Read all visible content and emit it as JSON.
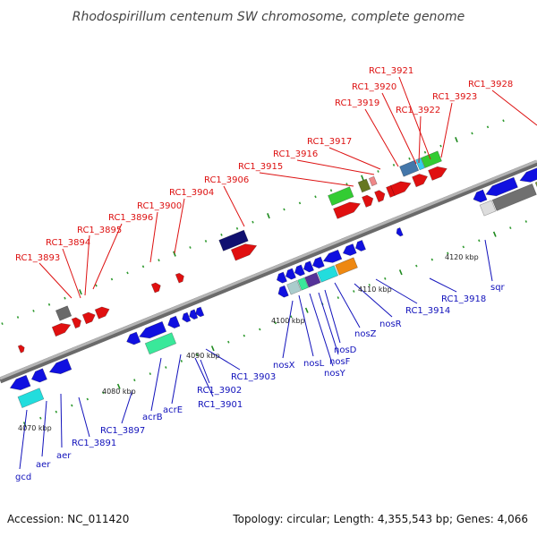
{
  "title": "Rhodospirillum centenum SW chromosome, complete genome",
  "footer": {
    "accession": "Accession: NC_011420",
    "topology": "Topology: circular; Length: 4,355,543 bp; Genes: 4,066"
  },
  "scale_labels": [
    "4070 kbp",
    "4080 kbp",
    "4090 kbp",
    "4100 kbp",
    "4110 kbp",
    "4120 kbp"
  ],
  "colors": {
    "forward_label": "#dd1111",
    "reverse_label": "#1111bb",
    "backbone": "#999999"
  },
  "forward_genes": [
    "RC1_3893",
    "RC1_3894",
    "RC1_3895",
    "RC1_3896",
    "RC1_3900",
    "RC1_3904",
    "RC1_3906",
    "RC1_3915",
    "RC1_3916",
    "RC1_3917",
    "RC1_3919",
    "RC1_3920",
    "RC1_3921",
    "RC1_3922",
    "RC1_3923",
    "RC1_3928"
  ],
  "reverse_genes": [
    "gcd",
    "aer",
    "aer",
    "RC1_3891",
    "RC1_3897",
    "acrB",
    "acrE",
    "RC1_3901",
    "RC1_3902",
    "RC1_3903",
    "nosX",
    "nosL",
    "nosY",
    "nosF",
    "nosD",
    "nosZ",
    "nosR",
    "RC1_3914",
    "RC1_3918",
    "sqr"
  ]
}
